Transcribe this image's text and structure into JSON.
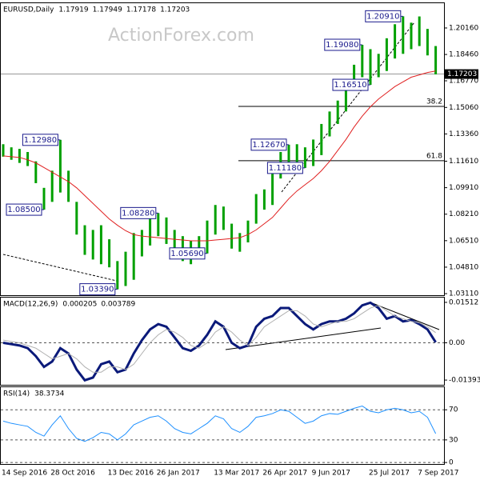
{
  "chart_data": [
    {
      "type": "hilo",
      "title": "EURUSD,Daily",
      "header": [
        1.17919,
        1.17949,
        1.17178,
        1.17203
      ],
      "watermark": "ActionForex.com",
      "color": "#00a000",
      "high": [
        1.127,
        1.125,
        1.124,
        1.122,
        1.116,
        1.099,
        1.11,
        1.1298,
        1.11,
        1.09,
        1.075,
        1.072,
        1.075,
        1.066,
        1.052,
        1.058,
        1.07,
        1.072,
        1.08,
        1.0828,
        1.08,
        1.072,
        1.068,
        1.065,
        1.068,
        1.078,
        1.088,
        1.087,
        1.076,
        1.07,
        1.078,
        1.095,
        1.098,
        1.108,
        1.122,
        1.1267,
        1.127,
        1.125,
        1.13,
        1.14,
        1.148,
        1.155,
        1.168,
        1.178,
        1.1908,
        1.188,
        1.185,
        1.195,
        1.204,
        1.2091,
        1.205,
        1.209,
        1.201,
        1.19
      ],
      "low": [
        1.119,
        1.117,
        1.115,
        1.113,
        1.102,
        1.085,
        1.09,
        1.096,
        1.09,
        1.069,
        1.056,
        1.053,
        1.05,
        1.048,
        1.0339,
        1.036,
        1.04,
        1.055,
        1.062,
        1.068,
        1.063,
        1.056,
        1.052,
        1.05,
        1.054,
        1.0569,
        1.069,
        1.072,
        1.06,
        1.058,
        1.064,
        1.076,
        1.085,
        1.088,
        1.105,
        1.111,
        1.115,
        1.1118,
        1.113,
        1.12,
        1.132,
        1.14,
        1.148,
        1.162,
        1.17,
        1.1651,
        1.17,
        1.174,
        1.182,
        1.185,
        1.188,
        1.19,
        1.184,
        1.1718
      ],
      "ma": {
        "color": "#e02020",
        "values": [
          1.1195,
          1.119,
          1.1185,
          1.117,
          1.115,
          1.112,
          1.109,
          1.106,
          1.103,
          1.099,
          1.094,
          1.089,
          1.084,
          1.079,
          1.075,
          1.0715,
          1.069,
          1.068,
          1.0675,
          1.067,
          1.0665,
          1.066,
          1.0655,
          1.065,
          1.065,
          1.065,
          1.0655,
          1.066,
          1.0665,
          1.067,
          1.069,
          1.072,
          1.076,
          1.08,
          1.086,
          1.092,
          1.097,
          1.101,
          1.105,
          1.11,
          1.116,
          1.123,
          1.13,
          1.138,
          1.145,
          1.151,
          1.156,
          1.16,
          1.164,
          1.167,
          1.17,
          1.1715,
          1.173,
          1.174
        ]
      },
      "last": 1.17203,
      "ylim": [
        1.0301,
        1.2175
      ],
      "yticks": [
        {
          "value": 1.2016,
          "label": "1.20160"
        },
        {
          "value": 1.1846,
          "label": "1.18460"
        },
        {
          "value": 1.1677,
          "label": "1.16770"
        },
        {
          "value": 1.1506,
          "label": "1.15060"
        },
        {
          "value": 1.1336,
          "label": "1.13360"
        },
        {
          "value": 1.1161,
          "label": "1.11610"
        },
        {
          "value": 1.0991,
          "label": "1.09910"
        },
        {
          "value": 1.0821,
          "label": "1.08210"
        },
        {
          "value": 1.0651,
          "label": "1.06510"
        },
        {
          "value": 1.0481,
          "label": "1.04810"
        },
        {
          "value": 1.0311,
          "label": "1.03110"
        }
      ],
      "fib": {
        "ratios": [
          38.2,
          61.8
        ],
        "levels": [
          1.1513,
          1.1164
        ]
      },
      "annotations": [
        {
          "value": 1.1298,
          "label": "1.12980"
        },
        {
          "value": 1.085,
          "label": "1.08500"
        },
        {
          "value": 1.0828,
          "label": "1.08280"
        },
        {
          "value": 1.0339,
          "label": "1.03390"
        },
        {
          "value": 1.0569,
          "label": "1.05690"
        },
        {
          "value": 1.1267,
          "label": "1.12670"
        },
        {
          "value": 1.1118,
          "label": "1.11180"
        },
        {
          "value": 1.1908,
          "label": "1.19080"
        },
        {
          "value": 1.1651,
          "label": "1.16510"
        },
        {
          "value": 1.2091,
          "label": "1.20910"
        }
      ]
    },
    {
      "type": "line",
      "title": "MACD(12,26,9)",
      "header": [
        0.000205,
        0.003789
      ],
      "zero_line": true,
      "series": [
        {
          "color": "#0b1a7a",
          "values": [
            0,
            -0.0005,
            -0.001,
            -0.002,
            -0.005,
            -0.009,
            -0.007,
            -0.002,
            -0.004,
            -0.01,
            -0.014,
            -0.013,
            -0.008,
            -0.007,
            -0.011,
            -0.01,
            -0.004,
            0.001,
            0.005,
            0.007,
            0.006,
            0.002,
            -0.002,
            -0.003,
            -0.001,
            0.003,
            0.008,
            0.006,
            0,
            -0.002,
            -0.001,
            0.006,
            0.009,
            0.01,
            0.013,
            0.013,
            0.01,
            0.007,
            0.005,
            0.007,
            0.008,
            0.008,
            0.009,
            0.011,
            0.014,
            0.015,
            0.013,
            0.009,
            0.01,
            0.008,
            0.0085,
            0.007,
            0.005,
            0.000205
          ]
        },
        {
          "color": "#b0b0b0",
          "values": [
            0.001,
            0.0005,
            0,
            -0.001,
            -0.002,
            -0.004,
            -0.006,
            -0.005,
            -0.004,
            -0.006,
            -0.009,
            -0.011,
            -0.011,
            -0.009,
            -0.009,
            -0.01,
            -0.008,
            -0.004,
            0,
            0.003,
            0.005,
            0.004,
            0.002,
            -0.001,
            -0.002,
            0,
            0.004,
            0.006,
            0.004,
            0.001,
            -0.001,
            0.002,
            0.006,
            0.008,
            0.01,
            0.012,
            0.012,
            0.01,
            0.007,
            0.006,
            0.007,
            0.008,
            0.008,
            0.009,
            0.011,
            0.013,
            0.014,
            0.012,
            0.01,
            0.009,
            0.008,
            0.0075,
            0.006,
            0.003789
          ]
        }
      ],
      "ylim": [
        -0.0157,
        0.0169
      ],
      "yticks": [
        0.01512,
        {
          "value": 0,
          "label": "0.00"
        },
        -0.01393
      ]
    },
    {
      "type": "line",
      "title": "RSI(14)",
      "header": [
        38.3734
      ],
      "grid": true,
      "series": [
        {
          "color": "#1e90ff",
          "values": [
            55,
            52,
            50,
            48,
            40,
            35,
            50,
            62,
            45,
            32,
            28,
            33,
            40,
            38,
            30,
            38,
            50,
            55,
            60,
            62,
            55,
            45,
            40,
            38,
            45,
            52,
            62,
            58,
            45,
            40,
            48,
            60,
            62,
            65,
            70,
            68,
            60,
            52,
            55,
            62,
            65,
            64,
            68,
            72,
            75,
            68,
            66,
            70,
            72,
            70,
            66,
            68,
            60,
            38.3734
          ]
        }
      ],
      "ylim": [
        -2,
        100
      ],
      "yticks": [
        70,
        30,
        0
      ],
      "categories": [
        "14 Sep 2016",
        null,
        null,
        null,
        null,
        null,
        "28 Oct 2016",
        null,
        null,
        null,
        null,
        null,
        null,
        "13 Dec 2016",
        null,
        null,
        null,
        null,
        null,
        "26 Jan 2017",
        null,
        null,
        null,
        null,
        null,
        null,
        "13 Mar 2017",
        null,
        null,
        null,
        null,
        null,
        "26 Apr 2017",
        null,
        null,
        null,
        null,
        null,
        "9 Jun 2017",
        null,
        null,
        null,
        null,
        null,
        null,
        "25 Jul 2017",
        null,
        null,
        null,
        null,
        null,
        "7 Sep 2017",
        null,
        null
      ]
    }
  ]
}
